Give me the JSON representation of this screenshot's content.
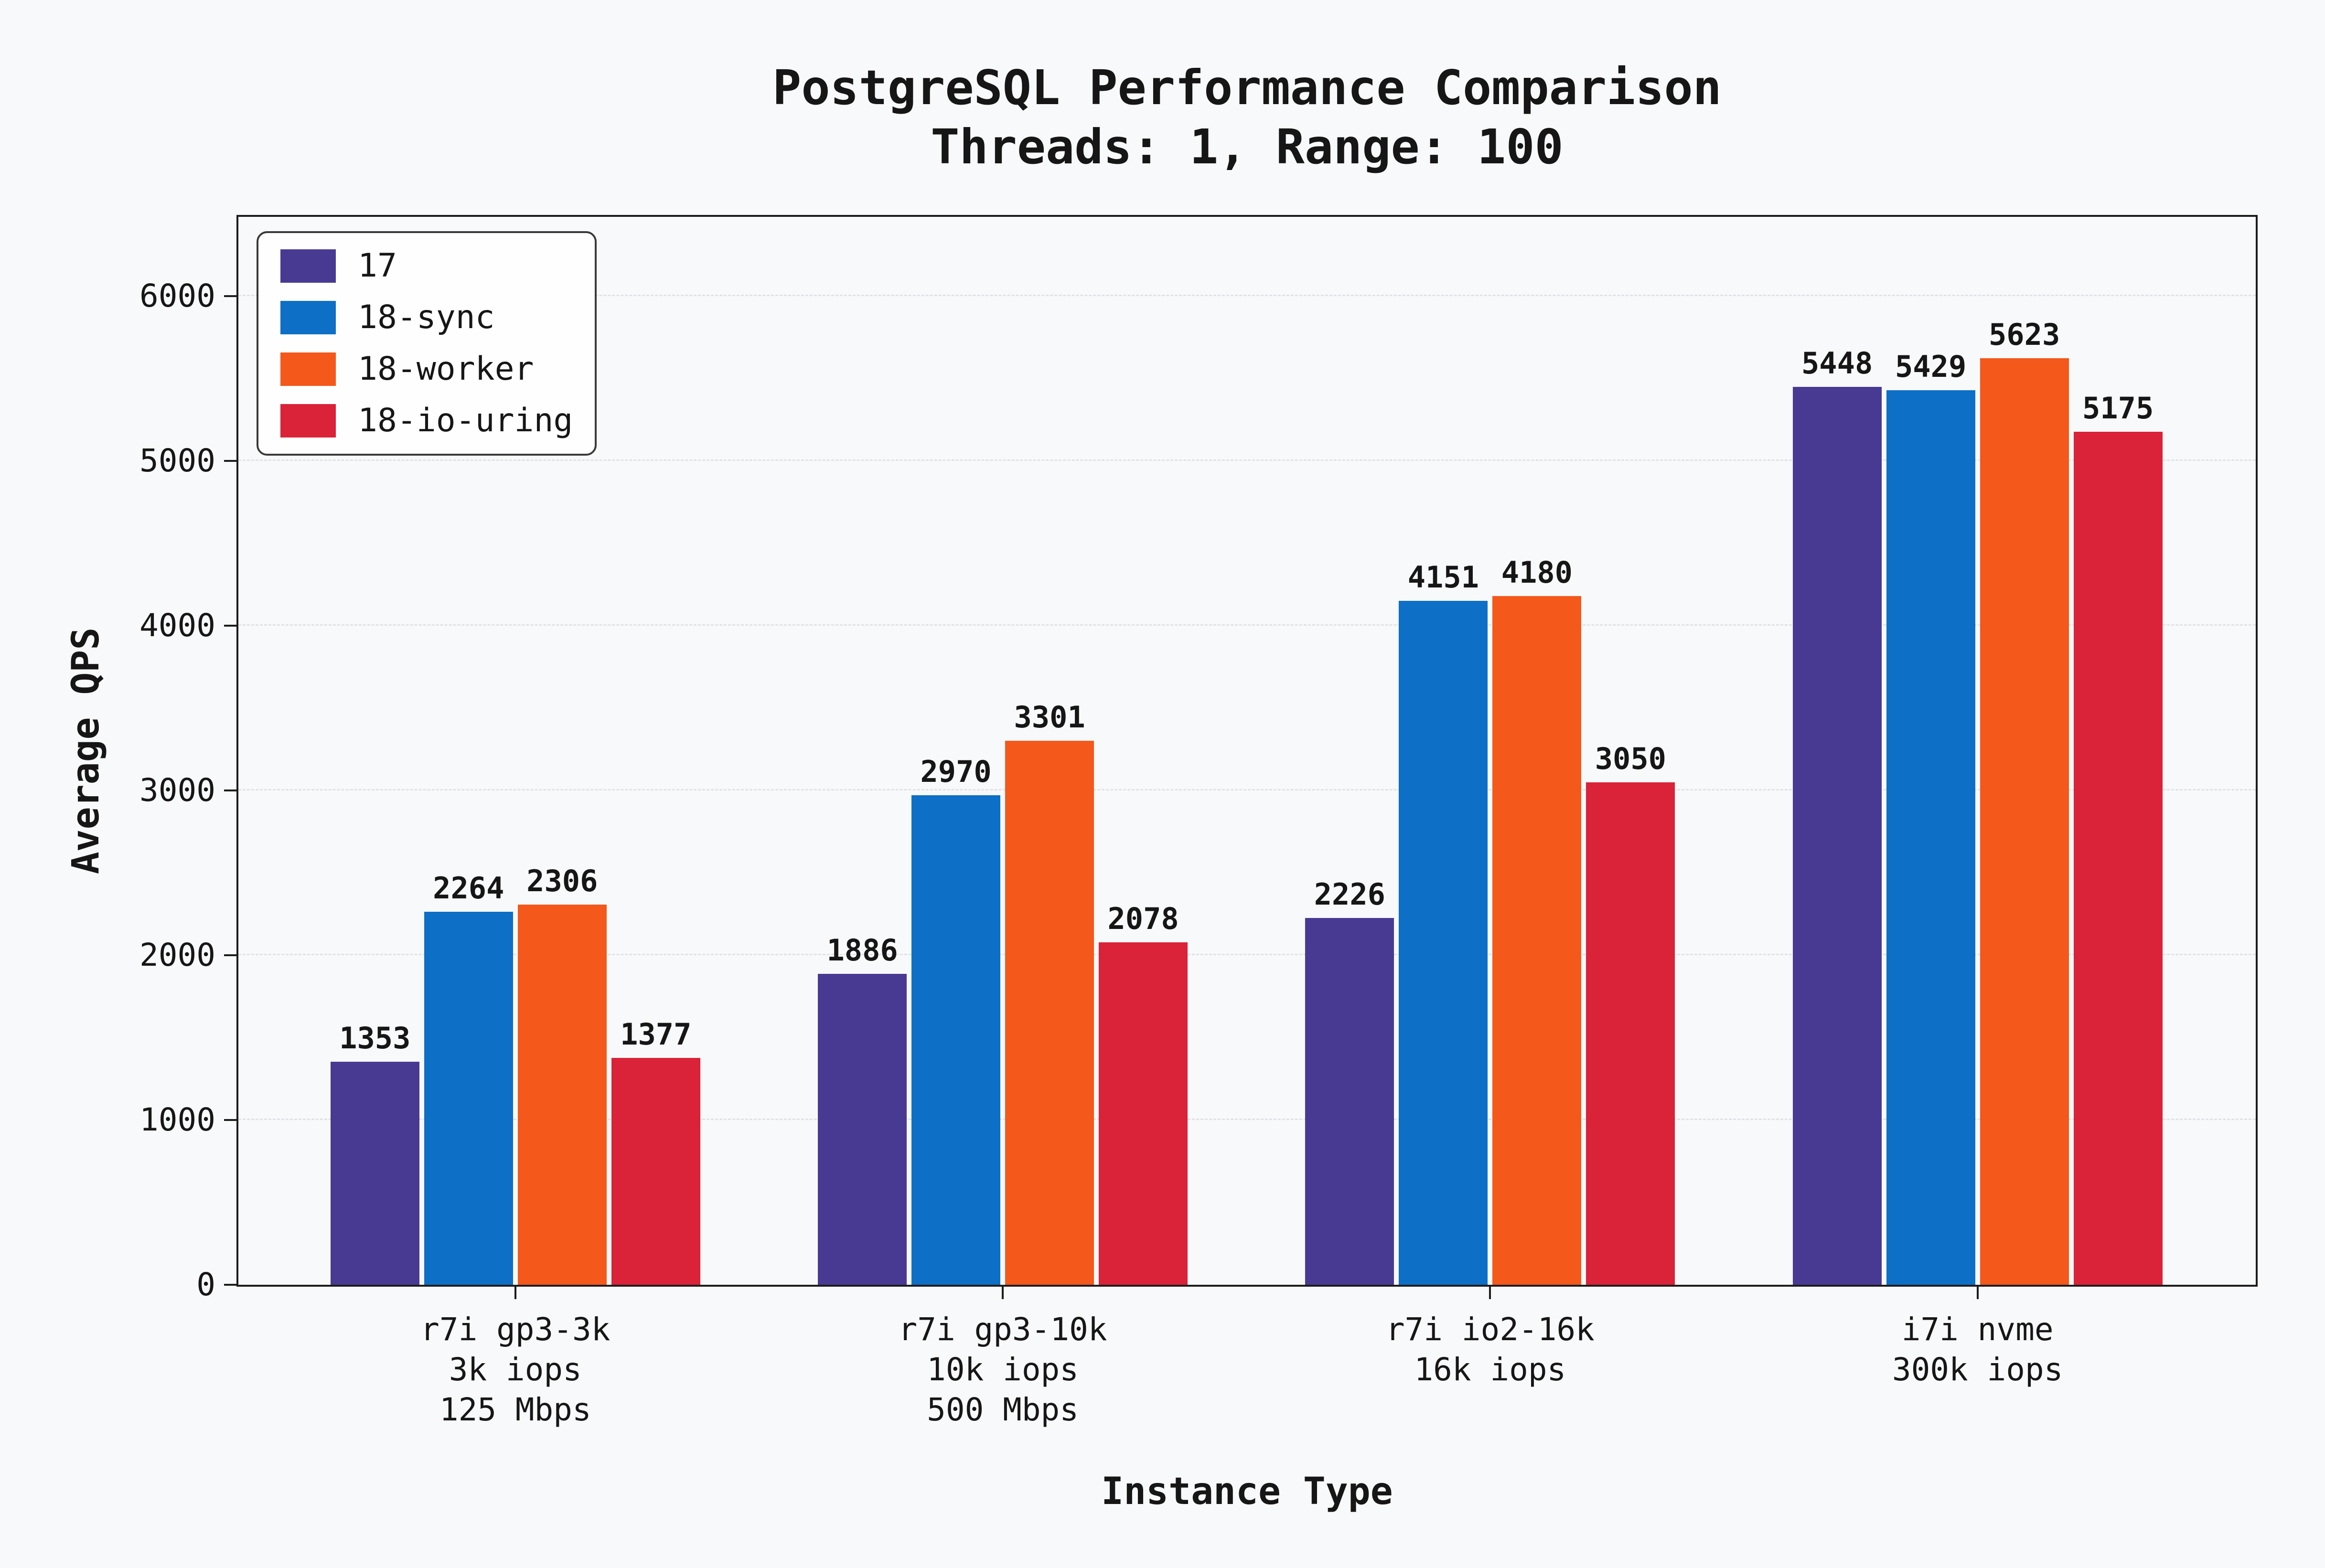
{
  "chart_data": {
    "type": "bar",
    "title": "PostgreSQL Performance Comparison",
    "subtitle": "Threads: 1, Range: 100",
    "xlabel": "Instance Type",
    "ylabel": "Average QPS",
    "ylim": [
      0,
      6480
    ],
    "yticks": [
      0,
      1000,
      2000,
      3000,
      4000,
      5000,
      6000
    ],
    "grid": "horizontal-dashed",
    "legend_position": "upper-left",
    "categories": [
      [
        "r7i gp3-3k",
        "3k iops",
        "125 Mbps"
      ],
      [
        "r7i gp3-10k",
        "10k iops",
        "500 Mbps"
      ],
      [
        "r7i io2-16k",
        "16k iops"
      ],
      [
        "i7i nvme",
        "300k iops"
      ]
    ],
    "series": [
      {
        "name": "17",
        "color": "#483a93",
        "values": [
          1353,
          1886,
          2226,
          5448
        ]
      },
      {
        "name": "18-sync",
        "color": "#0d6fc6",
        "values": [
          2264,
          2970,
          4151,
          5429
        ]
      },
      {
        "name": "18-worker",
        "color": "#f4581b",
        "values": [
          2306,
          3301,
          4180,
          5623
        ]
      },
      {
        "name": "18-io-uring",
        "color": "#da2238",
        "values": [
          1377,
          2078,
          3050,
          5175
        ]
      }
    ],
    "colors": {
      "background": "#f8f9fa",
      "text": "#161616",
      "grid": "#e0e2e5",
      "spine": "#1c1c1c",
      "legend_bg": "#fefefe"
    }
  }
}
